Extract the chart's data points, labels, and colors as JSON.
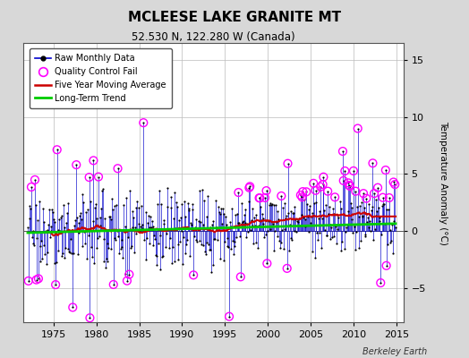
{
  "title": "MCLEESE LAKE GRANITE MT",
  "subtitle": "52.530 N, 122.280 W (Canada)",
  "ylabel": "Temperature Anomaly (°C)",
  "watermark": "Berkeley Earth",
  "xlim": [
    1971.5,
    2015.8
  ],
  "ylim": [
    -8.0,
    16.5
  ],
  "yticks": [
    -5,
    0,
    5,
    10,
    15
  ],
  "xticks": [
    1975,
    1980,
    1985,
    1990,
    1995,
    2000,
    2005,
    2010,
    2015
  ],
  "fig_bg_color": "#d8d8d8",
  "plot_bg_color": "#ffffff",
  "line_color": "#0000cc",
  "dot_color": "#000000",
  "ma_color": "#cc0000",
  "trend_color": "#00cc00",
  "qc_color": "#ff00ff",
  "seed": 17,
  "start_year": 1972.0,
  "end_year": 2014.9,
  "n_monthly": 516
}
